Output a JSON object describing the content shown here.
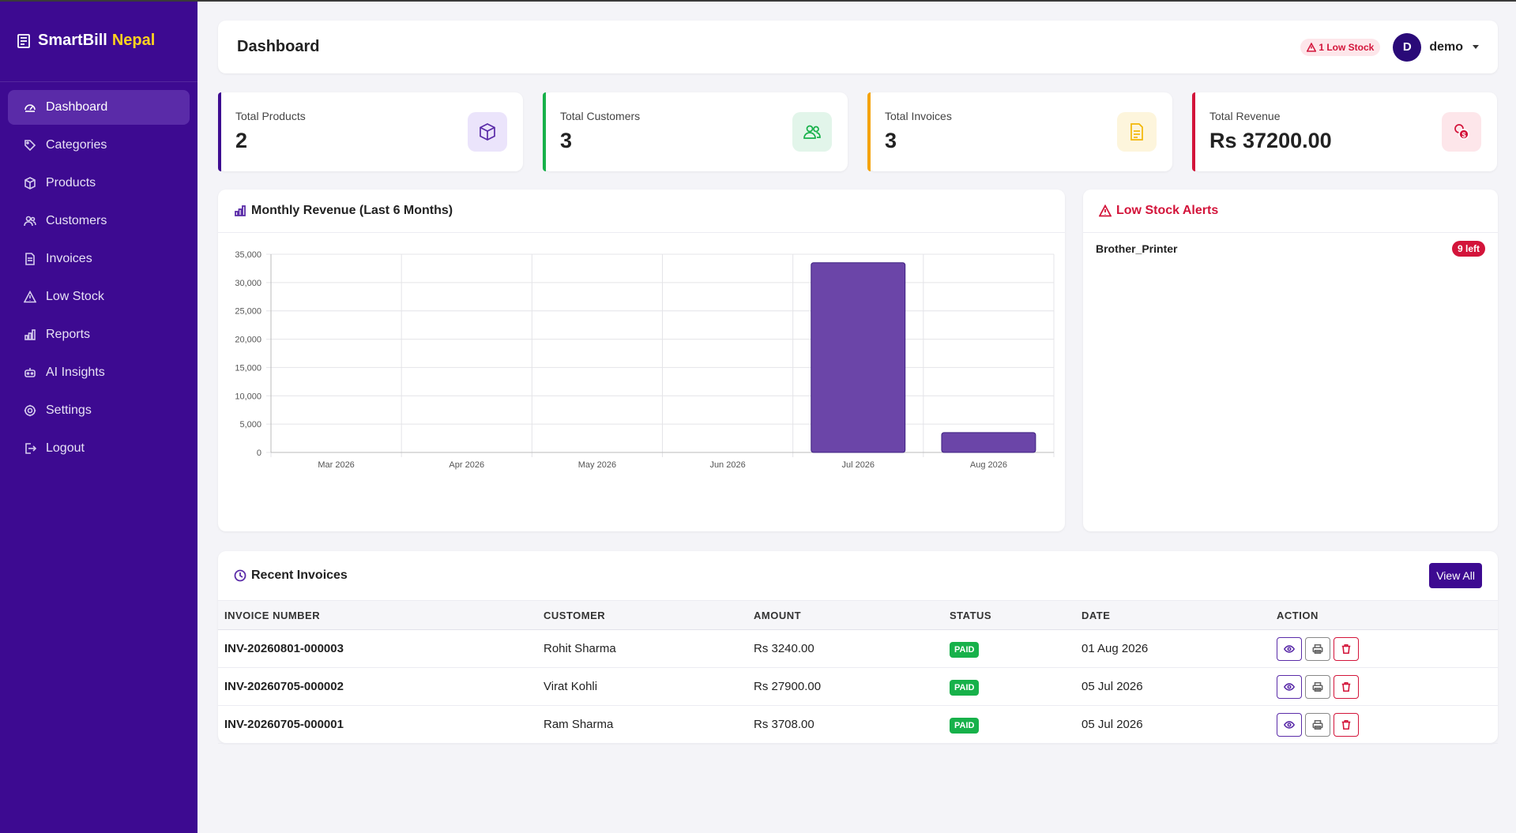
{
  "app": {
    "name": "SmartBill",
    "name_accent": "Nepal"
  },
  "sidebar": {
    "items": [
      {
        "label": "Dashboard",
        "icon": "dashboard-icon",
        "active": true
      },
      {
        "label": "Categories",
        "icon": "tag-icon"
      },
      {
        "label": "Products",
        "icon": "box-icon"
      },
      {
        "label": "Customers",
        "icon": "users-icon"
      },
      {
        "label": "Invoices",
        "icon": "file-icon"
      },
      {
        "label": "Low Stock",
        "icon": "warning-icon"
      },
      {
        "label": "Reports",
        "icon": "bar-chart-icon"
      },
      {
        "label": "AI Insights",
        "icon": "robot-icon"
      },
      {
        "label": "Settings",
        "icon": "gear-icon"
      },
      {
        "label": "Logout",
        "icon": "logout-icon"
      }
    ]
  },
  "header": {
    "title": "Dashboard",
    "low_stock_badge": "1 Low Stock",
    "avatar_initial": "D",
    "username": "demo"
  },
  "stats": [
    {
      "label": "Total Products",
      "value": "2",
      "color": "#3d0a91",
      "icon": "box-icon"
    },
    {
      "label": "Total Customers",
      "value": "3",
      "color": "#17b14a",
      "icon": "users-icon"
    },
    {
      "label": "Total Invoices",
      "value": "3",
      "color": "#f5a30a",
      "icon": "file-icon"
    },
    {
      "label": "Total Revenue",
      "value": "Rs 37200.00",
      "color": "#d3143a",
      "icon": "coins-icon"
    }
  ],
  "chart": {
    "title": "Monthly Revenue (Last 6 Months)"
  },
  "chart_data": {
    "type": "bar",
    "categories": [
      "Mar 2026",
      "Apr 2026",
      "May 2026",
      "Jun 2026",
      "Jul 2026",
      "Aug 2026"
    ],
    "values": [
      0,
      0,
      0,
      0,
      33500,
      3500
    ],
    "title": "Monthly Revenue (Last 6 Months)",
    "xlabel": "",
    "ylabel": "",
    "ylim": [
      0,
      35000
    ],
    "yticks": [
      "35,000",
      "30,000",
      "25,000",
      "20,000",
      "15,000",
      "10,000",
      "5,000",
      "0"
    ],
    "ytick_values": [
      35000,
      30000,
      25000,
      20000,
      15000,
      10000,
      5000,
      0
    ],
    "grid": true,
    "bar_color": "#6b45a8"
  },
  "alerts": {
    "title": "Low Stock Alerts",
    "items": [
      {
        "name": "Brother_Printer",
        "badge": "9 left"
      }
    ]
  },
  "invoices": {
    "title": "Recent Invoices",
    "view_all": "View All",
    "columns": [
      "INVOICE NUMBER",
      "CUSTOMER",
      "AMOUNT",
      "STATUS",
      "DATE",
      "ACTION"
    ],
    "rows": [
      {
        "number": "INV-20260801-000003",
        "customer": "Rohit Sharma",
        "amount": "Rs 3240.00",
        "status": "PAID",
        "date": "01 Aug 2026"
      },
      {
        "number": "INV-20260705-000002",
        "customer": "Virat Kohli",
        "amount": "Rs 27900.00",
        "status": "PAID",
        "date": "05 Jul 2026"
      },
      {
        "number": "INV-20260705-000001",
        "customer": "Ram Sharma",
        "amount": "Rs 3708.00",
        "status": "PAID",
        "date": "05 Jul 2026"
      }
    ]
  }
}
